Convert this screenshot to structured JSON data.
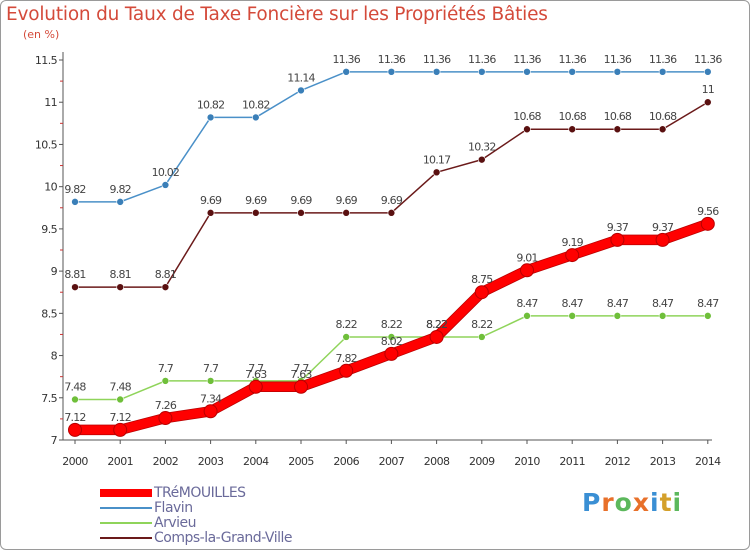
{
  "header": {
    "title": "Evolution du Taux de Taxe Foncière sur les Propriétés Bâties",
    "unit": "(en %)"
  },
  "logo": {
    "text": "Proxiti",
    "letters": [
      {
        "ch": "P",
        "color": "#3a8fd4"
      },
      {
        "ch": "r",
        "color": "#e8702a"
      },
      {
        "ch": "o",
        "color": "#5cb85c"
      },
      {
        "ch": "x",
        "color": "#e8702a"
      },
      {
        "ch": "i",
        "color": "#3a8fd4"
      },
      {
        "ch": "t",
        "color": "#d4a02a"
      },
      {
        "ch": "i",
        "color": "#5cb85c"
      }
    ]
  },
  "chart_data": {
    "type": "line",
    "title": "Evolution du Taux de Taxe Foncière sur les Propriétés Bâties",
    "ylabel": "(en %)",
    "xlabel": "",
    "x": [
      "2000",
      "2001",
      "2002",
      "2003",
      "2004",
      "2005",
      "2006",
      "2007",
      "2008",
      "2009",
      "2010",
      "2011",
      "2012",
      "2013",
      "2014"
    ],
    "ylim": [
      7,
      11.5
    ],
    "yticks": [
      7,
      7.5,
      8,
      8.5,
      9,
      9.5,
      10,
      10.5,
      11,
      11.5
    ],
    "grid": false,
    "legend": "bottom-left",
    "series": [
      {
        "name": "TRéMOUILLES",
        "color": "#ff0000",
        "values": [
          7.12,
          7.12,
          7.26,
          7.34,
          7.63,
          7.63,
          7.82,
          8.02,
          8.22,
          8.75,
          9.01,
          9.19,
          9.37,
          9.37,
          9.56
        ]
      },
      {
        "name": "Flavin",
        "color": "#4a90c8",
        "values": [
          9.82,
          9.82,
          10.02,
          10.82,
          10.82,
          11.14,
          11.36,
          11.36,
          11.36,
          11.36,
          11.36,
          11.36,
          11.36,
          11.36,
          11.36
        ]
      },
      {
        "name": "Arvieu",
        "color": "#8fd45a",
        "values": [
          7.48,
          7.48,
          7.7,
          7.7,
          7.7,
          7.7,
          8.22,
          8.22,
          8.22,
          8.22,
          8.47,
          8.47,
          8.47,
          8.47,
          8.47
        ]
      },
      {
        "name": "Comps-la-Grand-Ville",
        "color": "#6b1a1a",
        "values": [
          8.81,
          8.81,
          8.81,
          9.69,
          9.69,
          9.69,
          9.69,
          9.69,
          10.17,
          10.32,
          10.68,
          10.68,
          10.68,
          10.68,
          11
        ]
      }
    ],
    "labels": [
      {
        "series": 1,
        "text": [
          "9.82",
          "9.82",
          "10.02",
          "10.82",
          "10.82",
          "11.14",
          "11.36",
          "11.36",
          "11.36",
          "11.36",
          "11.36",
          "11.36",
          "11.36",
          "11.36",
          "11.36"
        ]
      },
      {
        "series": 3,
        "text": [
          "8.81",
          "8.81",
          "8.81",
          "9.69",
          "9.69",
          "9.69",
          "9.69",
          "9.69",
          "10.17",
          "10.32",
          "10.68",
          "10.68",
          "10.68",
          "10.68",
          "11"
        ]
      },
      {
        "series": 2,
        "text": [
          "7.48",
          "7.48",
          "7.7",
          "7.7",
          "7.7",
          "7.7",
          "8.22",
          "8.22",
          "8.22",
          "8.22",
          "8.47",
          "8.47",
          "8.47",
          "8.47",
          "8.47"
        ]
      },
      {
        "series": 0,
        "text": [
          "7.12",
          "7.12",
          "7.26",
          "7.34",
          "7.63",
          "7.63",
          "7.82",
          "8.02",
          "8.22",
          "8.75",
          "9.01",
          "9.19",
          "9.37",
          "9.37",
          "9.56"
        ]
      }
    ]
  }
}
